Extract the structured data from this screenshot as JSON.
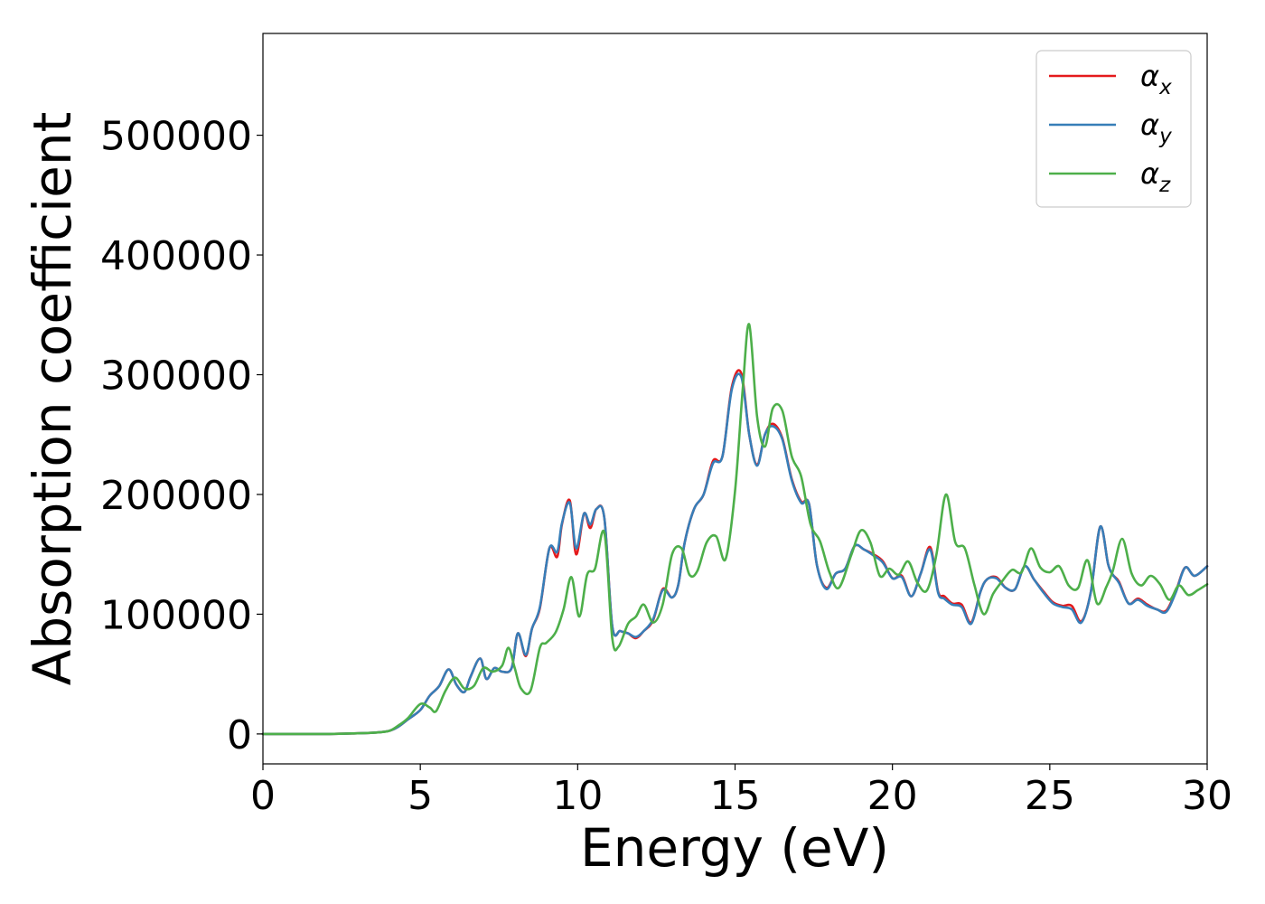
{
  "chart_data": {
    "type": "line",
    "xlabel": "Energy (eV)",
    "ylabel": "Absorption coefficient",
    "xlim": [
      0,
      30
    ],
    "ylim": [
      -25000,
      585000
    ],
    "xticks": [
      0,
      5,
      10,
      15,
      20,
      25,
      30
    ],
    "xtick_labels": [
      "0",
      "5",
      "10",
      "15",
      "20",
      "25",
      "30"
    ],
    "yticks": [
      0,
      100000,
      200000,
      300000,
      400000,
      500000
    ],
    "ytick_labels": [
      "0",
      "100000",
      "200000",
      "300000",
      "400000",
      "500000"
    ],
    "grid": false,
    "legend_position": "top-right",
    "series": [
      {
        "name": "α",
        "subscript": "x",
        "color": "#e41a1c",
        "x": [
          0,
          1,
          2,
          3,
          3.5,
          4,
          4.3,
          4.6,
          5,
          5.3,
          5.6,
          5.9,
          6.15,
          6.4,
          6.6,
          6.9,
          7.1,
          7.35,
          7.6,
          7.9,
          8.1,
          8.35,
          8.55,
          8.8,
          9.1,
          9.35,
          9.5,
          9.75,
          9.95,
          10.2,
          10.4,
          10.6,
          10.85,
          11.1,
          11.35,
          11.6,
          11.85,
          12.1,
          12.4,
          12.7,
          13.0,
          13.2,
          13.4,
          13.7,
          14.0,
          14.3,
          14.6,
          14.9,
          15.2,
          15.45,
          15.7,
          15.95,
          16.2,
          16.5,
          16.8,
          17.1,
          17.35,
          17.6,
          17.9,
          18.2,
          18.5,
          18.8,
          19.1,
          19.4,
          19.7,
          20.0,
          20.3,
          20.6,
          20.9,
          21.2,
          21.45,
          21.65,
          21.9,
          22.2,
          22.5,
          22.8,
          23.0,
          23.3,
          23.6,
          23.9,
          24.2,
          24.5,
          24.8,
          25.1,
          25.4,
          25.7,
          26.0,
          26.3,
          26.6,
          26.85,
          27.0,
          27.2,
          27.5,
          27.8,
          28.1,
          28.4,
          28.7,
          29.0,
          29.3,
          29.6,
          30.0
        ],
        "values": [
          0,
          0,
          0,
          500,
          1000,
          2500,
          6000,
          12000,
          20000,
          32000,
          40000,
          54000,
          41000,
          35000,
          48000,
          63000,
          46000,
          55000,
          52000,
          55000,
          84000,
          65000,
          88000,
          105000,
          155000,
          148000,
          175000,
          195000,
          150000,
          184000,
          172000,
          188000,
          180000,
          90000,
          86000,
          84000,
          80000,
          86000,
          95000,
          121000,
          114000,
          125000,
          160000,
          188000,
          200000,
          228000,
          232000,
          290000,
          301000,
          250000,
          225000,
          250000,
          259000,
          247000,
          213000,
          194000,
          192000,
          141000,
          122000,
          134000,
          138000,
          157000,
          154000,
          150000,
          144000,
          130000,
          132000,
          115000,
          134000,
          156000,
          119000,
          115000,
          109000,
          108000,
          93000,
          119000,
          129000,
          131000,
          122000,
          121000,
          140000,
          129000,
          119000,
          110000,
          107000,
          107000,
          94000,
          118000,
          173000,
          142000,
          133000,
          127000,
          109000,
          113000,
          108000,
          104000,
          103000,
          119000,
          139000,
          132000,
          140000
        ]
      },
      {
        "name": "α",
        "subscript": "y",
        "color": "#377eb8",
        "x": [
          0,
          1,
          2,
          3,
          3.5,
          4,
          4.3,
          4.6,
          5,
          5.3,
          5.6,
          5.9,
          6.15,
          6.4,
          6.6,
          6.9,
          7.1,
          7.35,
          7.6,
          7.9,
          8.1,
          8.35,
          8.55,
          8.8,
          9.1,
          9.35,
          9.5,
          9.75,
          9.95,
          10.2,
          10.4,
          10.6,
          10.85,
          11.1,
          11.35,
          11.6,
          11.85,
          12.1,
          12.4,
          12.7,
          13.0,
          13.2,
          13.4,
          13.7,
          14.0,
          14.3,
          14.6,
          14.9,
          15.2,
          15.45,
          15.7,
          15.95,
          16.2,
          16.5,
          16.8,
          17.1,
          17.35,
          17.6,
          17.9,
          18.2,
          18.5,
          18.8,
          19.1,
          19.4,
          19.7,
          20.0,
          20.3,
          20.6,
          20.9,
          21.2,
          21.45,
          21.65,
          21.9,
          22.2,
          22.5,
          22.8,
          23.0,
          23.3,
          23.6,
          23.9,
          24.2,
          24.5,
          24.8,
          25.1,
          25.4,
          25.7,
          26.0,
          26.3,
          26.6,
          26.85,
          27.0,
          27.2,
          27.5,
          27.8,
          28.1,
          28.4,
          28.7,
          29.0,
          29.3,
          29.6,
          30.0
        ],
        "values": [
          0,
          0,
          0,
          500,
          1000,
          2500,
          6000,
          12000,
          20000,
          32000,
          40000,
          54000,
          41000,
          35000,
          48000,
          63000,
          46000,
          55000,
          52000,
          55000,
          84000,
          66000,
          88000,
          106000,
          155000,
          152000,
          176000,
          193000,
          155000,
          184000,
          175000,
          188000,
          180000,
          90000,
          86000,
          84000,
          81000,
          86000,
          96000,
          120000,
          114000,
          125000,
          160000,
          188000,
          200000,
          226000,
          232000,
          288000,
          298000,
          250000,
          224000,
          250000,
          257000,
          246000,
          212000,
          193000,
          192000,
          141000,
          121000,
          134000,
          138000,
          157000,
          154000,
          149000,
          143000,
          130000,
          131000,
          115000,
          134000,
          154000,
          118000,
          113000,
          108000,
          106000,
          92000,
          119000,
          129000,
          130000,
          122000,
          121000,
          140000,
          129000,
          118000,
          109000,
          106000,
          104000,
          93000,
          118000,
          173000,
          142000,
          133000,
          126000,
          109000,
          112000,
          107000,
          104000,
          102000,
          118000,
          139000,
          132000,
          140000
        ]
      },
      {
        "name": "α",
        "subscript": "z",
        "color": "#4daf4a",
        "x": [
          0,
          1,
          2,
          3,
          3.5,
          4,
          4.3,
          4.6,
          5.0,
          5.3,
          5.5,
          5.8,
          6.1,
          6.4,
          6.7,
          7.0,
          7.3,
          7.6,
          7.8,
          8.0,
          8.2,
          8.5,
          8.8,
          9.0,
          9.3,
          9.55,
          9.8,
          10.05,
          10.3,
          10.55,
          10.85,
          11.1,
          11.3,
          11.6,
          11.85,
          12.1,
          12.4,
          12.7,
          13.0,
          13.3,
          13.55,
          13.8,
          14.1,
          14.4,
          14.7,
          15.0,
          15.25,
          15.45,
          15.7,
          15.95,
          16.2,
          16.5,
          16.8,
          17.1,
          17.4,
          17.7,
          18.0,
          18.3,
          18.7,
          19.0,
          19.3,
          19.6,
          19.9,
          20.2,
          20.5,
          20.8,
          21.1,
          21.4,
          21.7,
          22.0,
          22.3,
          22.6,
          22.9,
          23.2,
          23.5,
          23.8,
          24.1,
          24.4,
          24.7,
          25.0,
          25.3,
          25.6,
          25.9,
          26.2,
          26.5,
          26.8,
          27.0,
          27.3,
          27.6,
          27.9,
          28.2,
          28.5,
          28.8,
          29.1,
          29.4,
          29.7,
          30.0
        ],
        "values": [
          0,
          0,
          0,
          500,
          1000,
          2500,
          7000,
          13000,
          25000,
          22000,
          19000,
          36000,
          47000,
          38000,
          40000,
          55000,
          52000,
          57000,
          72000,
          55000,
          38000,
          36000,
          72000,
          76000,
          85000,
          104000,
          131000,
          98000,
          133000,
          138000,
          168000,
          80000,
          73000,
          92000,
          98000,
          108000,
          93000,
          108000,
          150000,
          155000,
          133000,
          136000,
          160000,
          165000,
          146000,
          203000,
          290000,
          342000,
          265000,
          240000,
          272000,
          270000,
          232000,
          215000,
          175000,
          161000,
          135000,
          122000,
          150000,
          170000,
          160000,
          132000,
          138000,
          133000,
          144000,
          126000,
          120000,
          150000,
          200000,
          160000,
          155000,
          125000,
          100000,
          117000,
          128000,
          137000,
          135000,
          155000,
          139000,
          135000,
          140000,
          124000,
          122000,
          145000,
          109000,
          123000,
          136000,
          163000,
          134000,
          124000,
          132000,
          125000,
          112000,
          124000,
          116000,
          120000,
          125000
        ]
      }
    ]
  }
}
